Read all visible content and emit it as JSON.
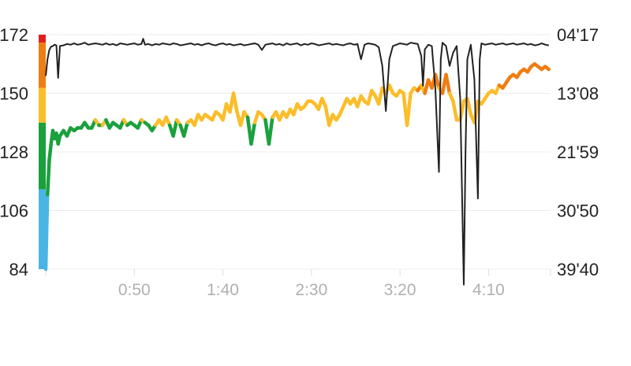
{
  "chart_data": {
    "type": "line",
    "title": "",
    "xlabel": "",
    "ylabel": "",
    "x_ticks": [
      {
        "label": "0:50",
        "minutes": 50
      },
      {
        "label": "1:40",
        "minutes": 100
      },
      {
        "label": "2:30",
        "minutes": 150
      },
      {
        "label": "3:20",
        "minutes": 200
      },
      {
        "label": "4:10",
        "minutes": 250
      }
    ],
    "x_range_minutes": [
      0,
      285
    ],
    "left_axis": {
      "ticks": [
        "172",
        "150",
        "128",
        "106",
        "84"
      ],
      "range": [
        84,
        172
      ]
    },
    "right_axis": {
      "ticks": [
        "04'17",
        "13'08",
        "21'59",
        "30'50",
        "39'40"
      ],
      "range_minutes": [
        4.283,
        39.667
      ],
      "inverted": true
    },
    "zones": [
      {
        "min": 84,
        "max": 114,
        "color": "#4ab4e6"
      },
      {
        "min": 114,
        "max": 139,
        "color": "#1aa03c"
      },
      {
        "min": 139,
        "max": 152,
        "color": "#fbbe2a"
      },
      {
        "min": 152,
        "max": 169,
        "color": "#f07d12"
      },
      {
        "min": 169,
        "max": 172,
        "color": "#e01e1e"
      }
    ],
    "grid": true,
    "series": [
      {
        "axis": "left",
        "color": "zones",
        "points": [
          [
            0,
            84
          ],
          [
            1,
            112
          ],
          [
            2,
            125
          ],
          [
            3,
            131
          ],
          [
            4,
            136
          ],
          [
            5,
            133
          ],
          [
            6,
            135
          ],
          [
            7,
            131
          ],
          [
            8,
            134
          ],
          [
            10,
            136
          ],
          [
            12,
            134
          ],
          [
            14,
            137
          ],
          [
            16,
            136
          ],
          [
            18,
            137
          ],
          [
            20,
            137
          ],
          [
            22,
            139
          ],
          [
            24,
            137
          ],
          [
            26,
            137
          ],
          [
            28,
            140
          ],
          [
            30,
            138
          ],
          [
            32,
            138
          ],
          [
            34,
            140
          ],
          [
            36,
            137
          ],
          [
            38,
            139
          ],
          [
            40,
            138
          ],
          [
            42,
            137
          ],
          [
            44,
            140
          ],
          [
            46,
            138
          ],
          [
            48,
            139
          ],
          [
            50,
            138
          ],
          [
            52,
            137
          ],
          [
            54,
            140
          ],
          [
            56,
            139
          ],
          [
            58,
            138
          ],
          [
            60,
            136
          ],
          [
            62,
            138
          ],
          [
            64,
            140
          ],
          [
            66,
            138
          ],
          [
            68,
            141
          ],
          [
            70,
            138
          ],
          [
            72,
            134
          ],
          [
            74,
            140
          ],
          [
            76,
            138
          ],
          [
            78,
            134
          ],
          [
            80,
            139
          ],
          [
            82,
            140
          ],
          [
            84,
            138
          ],
          [
            86,
            142
          ],
          [
            88,
            140
          ],
          [
            90,
            142
          ],
          [
            92,
            141
          ],
          [
            94,
            140
          ],
          [
            96,
            143
          ],
          [
            98,
            142
          ],
          [
            100,
            140
          ],
          [
            102,
            146
          ],
          [
            104,
            143
          ],
          [
            106,
            150
          ],
          [
            108,
            143
          ],
          [
            110,
            138
          ],
          [
            112,
            143
          ],
          [
            114,
            141
          ],
          [
            116,
            131
          ],
          [
            118,
            139
          ],
          [
            120,
            143
          ],
          [
            122,
            142
          ],
          [
            124,
            140
          ],
          [
            126,
            131
          ],
          [
            128,
            141
          ],
          [
            130,
            143
          ],
          [
            132,
            140
          ],
          [
            134,
            143
          ],
          [
            136,
            141
          ],
          [
            138,
            144
          ],
          [
            140,
            142
          ],
          [
            142,
            146
          ],
          [
            144,
            144
          ],
          [
            146,
            145
          ],
          [
            148,
            147
          ],
          [
            150,
            147
          ],
          [
            152,
            146
          ],
          [
            154,
            144
          ],
          [
            156,
            148
          ],
          [
            158,
            145
          ],
          [
            160,
            138
          ],
          [
            162,
            142
          ],
          [
            164,
            140
          ],
          [
            166,
            142
          ],
          [
            168,
            145
          ],
          [
            170,
            148
          ],
          [
            172,
            146
          ],
          [
            174,
            148
          ],
          [
            176,
            145
          ],
          [
            178,
            149
          ],
          [
            180,
            147
          ],
          [
            182,
            146
          ],
          [
            184,
            151
          ],
          [
            186,
            149
          ],
          [
            188,
            146
          ],
          [
            190,
            152
          ],
          [
            192,
            150
          ],
          [
            194,
            153
          ],
          [
            196,
            150
          ],
          [
            198,
            149
          ],
          [
            200,
            151
          ],
          [
            202,
            150
          ],
          [
            204,
            138
          ],
          [
            206,
            150
          ],
          [
            208,
            152
          ],
          [
            210,
            151
          ],
          [
            212,
            153
          ],
          [
            214,
            150
          ],
          [
            216,
            155
          ],
          [
            218,
            152
          ],
          [
            220,
            157
          ],
          [
            222,
            152
          ],
          [
            224,
            150
          ],
          [
            226,
            157
          ],
          [
            228,
            150
          ],
          [
            230,
            147
          ],
          [
            232,
            140
          ],
          [
            234,
            140
          ],
          [
            236,
            147
          ],
          [
            238,
            148
          ],
          [
            240,
            142
          ],
          [
            242,
            139
          ],
          [
            244,
            147
          ],
          [
            246,
            146
          ],
          [
            248,
            148
          ],
          [
            250,
            150
          ],
          [
            252,
            151
          ],
          [
            254,
            150
          ],
          [
            256,
            153
          ],
          [
            258,
            152
          ],
          [
            260,
            154
          ],
          [
            262,
            156
          ],
          [
            264,
            157
          ],
          [
            266,
            156
          ],
          [
            268,
            158
          ],
          [
            270,
            159
          ],
          [
            272,
            158
          ],
          [
            274,
            160
          ],
          [
            276,
            161
          ],
          [
            278,
            160
          ],
          [
            280,
            159
          ],
          [
            282,
            160
          ],
          [
            284,
            159
          ]
        ]
      },
      {
        "axis": "right",
        "color": "#222222",
        "points": [
          [
            0,
            10.5
          ],
          [
            1,
            8.0
          ],
          [
            2,
            6.6
          ],
          [
            3,
            6.1
          ],
          [
            4,
            6.0
          ],
          [
            5,
            5.8
          ],
          [
            6,
            5.9
          ],
          [
            7,
            10.8
          ],
          [
            8,
            6.0
          ],
          [
            10,
            5.9
          ],
          [
            12,
            5.7
          ],
          [
            14,
            5.8
          ],
          [
            16,
            5.6
          ],
          [
            18,
            5.8
          ],
          [
            20,
            5.7
          ],
          [
            22,
            5.5
          ],
          [
            24,
            5.8
          ],
          [
            26,
            5.7
          ],
          [
            28,
            5.6
          ],
          [
            30,
            5.7
          ],
          [
            32,
            5.8
          ],
          [
            34,
            5.6
          ],
          [
            36,
            5.8
          ],
          [
            38,
            5.7
          ],
          [
            40,
            5.9
          ],
          [
            42,
            5.6
          ],
          [
            44,
            5.7
          ],
          [
            46,
            5.8
          ],
          [
            48,
            5.7
          ],
          [
            50,
            5.6
          ],
          [
            52,
            5.8
          ],
          [
            54,
            5.7
          ],
          [
            55,
            4.9
          ],
          [
            56,
            5.8
          ],
          [
            58,
            5.7
          ],
          [
            60,
            5.9
          ],
          [
            62,
            5.7
          ],
          [
            64,
            5.8
          ],
          [
            66,
            5.6
          ],
          [
            68,
            5.7
          ],
          [
            70,
            5.8
          ],
          [
            72,
            5.6
          ],
          [
            74,
            5.7
          ],
          [
            76,
            5.9
          ],
          [
            78,
            5.8
          ],
          [
            80,
            5.7
          ],
          [
            82,
            5.6
          ],
          [
            84,
            5.8
          ],
          [
            86,
            5.7
          ],
          [
            88,
            5.9
          ],
          [
            90,
            5.7
          ],
          [
            92,
            5.6
          ],
          [
            94,
            5.8
          ],
          [
            96,
            5.9
          ],
          [
            98,
            5.7
          ],
          [
            100,
            5.6
          ],
          [
            102,
            5.8
          ],
          [
            104,
            5.7
          ],
          [
            106,
            5.9
          ],
          [
            108,
            5.8
          ],
          [
            110,
            5.7
          ],
          [
            112,
            5.9
          ],
          [
            114,
            5.8
          ],
          [
            116,
            5.7
          ],
          [
            118,
            5.6
          ],
          [
            120,
            5.8
          ],
          [
            122,
            6.6
          ],
          [
            124,
            5.8
          ],
          [
            126,
            5.7
          ],
          [
            128,
            5.6
          ],
          [
            130,
            5.8
          ],
          [
            132,
            5.7
          ],
          [
            134,
            5.9
          ],
          [
            136,
            5.6
          ],
          [
            138,
            5.8
          ],
          [
            140,
            5.7
          ],
          [
            142,
            5.6
          ],
          [
            144,
            5.9
          ],
          [
            146,
            5.7
          ],
          [
            148,
            5.8
          ],
          [
            150,
            5.6
          ],
          [
            152,
            5.7
          ],
          [
            154,
            5.9
          ],
          [
            156,
            5.8
          ],
          [
            158,
            5.7
          ],
          [
            160,
            5.6
          ],
          [
            162,
            5.8
          ],
          [
            164,
            5.7
          ],
          [
            166,
            5.8
          ],
          [
            168,
            5.9
          ],
          [
            170,
            5.7
          ],
          [
            172,
            5.6
          ],
          [
            174,
            5.8
          ],
          [
            176,
            5.7
          ],
          [
            178,
            8.0
          ],
          [
            180,
            5.8
          ],
          [
            182,
            5.6
          ],
          [
            184,
            5.7
          ],
          [
            186,
            5.8
          ],
          [
            188,
            6.2
          ],
          [
            190,
            9.0
          ],
          [
            192,
            15.8
          ],
          [
            194,
            8.0
          ],
          [
            196,
            6.0
          ],
          [
            198,
            5.8
          ],
          [
            200,
            5.6
          ],
          [
            202,
            5.7
          ],
          [
            204,
            5.8
          ],
          [
            206,
            5.5
          ],
          [
            208,
            5.6
          ],
          [
            210,
            5.7
          ],
          [
            212,
            7.5
          ],
          [
            213,
            12.0
          ],
          [
            214,
            6.5
          ],
          [
            216,
            5.8
          ],
          [
            218,
            6.0
          ],
          [
            220,
            12.5
          ],
          [
            222,
            25.0
          ],
          [
            223,
            8.0
          ],
          [
            224,
            5.5
          ],
          [
            226,
            6.0
          ],
          [
            228,
            9.0
          ],
          [
            230,
            7.0
          ],
          [
            232,
            6.0
          ],
          [
            234,
            14.0
          ],
          [
            236,
            42.0
          ],
          [
            237,
            22.0
          ],
          [
            238,
            8.0
          ],
          [
            240,
            5.8
          ],
          [
            242,
            11.0
          ],
          [
            244,
            29.0
          ],
          [
            245,
            8.0
          ],
          [
            246,
            5.6
          ],
          [
            248,
            5.8
          ],
          [
            250,
            5.7
          ],
          [
            252,
            5.6
          ],
          [
            254,
            5.8
          ],
          [
            256,
            5.7
          ],
          [
            258,
            5.6
          ],
          [
            260,
            5.8
          ],
          [
            262,
            5.7
          ],
          [
            264,
            5.6
          ],
          [
            266,
            5.8
          ],
          [
            268,
            5.7
          ],
          [
            270,
            5.6
          ],
          [
            272,
            5.8
          ],
          [
            274,
            5.7
          ],
          [
            276,
            5.9
          ],
          [
            278,
            5.8
          ],
          [
            280,
            5.6
          ],
          [
            282,
            5.8
          ],
          [
            284,
            5.9
          ]
        ]
      }
    ]
  }
}
